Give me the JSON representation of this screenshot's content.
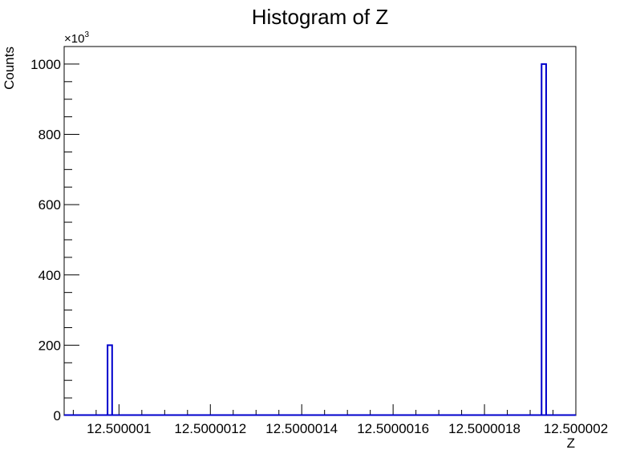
{
  "chart_data": {
    "type": "bar",
    "title": "Histogram of Z",
    "xlabel": "Z",
    "ylabel": "Counts",
    "y_multiplier_label": "×10",
    "y_multiplier_exponent": "3",
    "x_range": [
      12.50000088,
      12.500002
    ],
    "ylim": [
      0,
      1050000
    ],
    "x_ticks": [
      {
        "value": 12.500001,
        "label": "12.500001"
      },
      {
        "value": 12.5000012,
        "label": "12.5000012"
      },
      {
        "value": 12.5000014,
        "label": "12.5000014"
      },
      {
        "value": 12.5000016,
        "label": "12.5000016"
      },
      {
        "value": 12.5000018,
        "label": "12.5000018"
      },
      {
        "value": 12.500002,
        "label": "12.500002"
      }
    ],
    "y_ticks": [
      {
        "value": 0,
        "label": "0"
      },
      {
        "value": 200000,
        "label": "200"
      },
      {
        "value": 400000,
        "label": "400"
      },
      {
        "value": 600000,
        "label": "600"
      },
      {
        "value": 800000,
        "label": "800"
      },
      {
        "value": 1000000,
        "label": "1000"
      }
    ],
    "bins": [
      {
        "x_low": 12.500000975,
        "x_high": 12.500000985,
        "count": 200000
      },
      {
        "x_low": 12.500001925,
        "x_high": 12.500001935,
        "count": 1000000
      }
    ],
    "line_color": "#0000cc",
    "legend": "none",
    "grid": false
  }
}
